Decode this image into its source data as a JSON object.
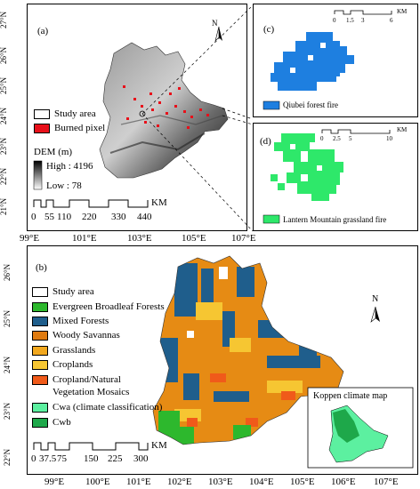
{
  "panel_a": {
    "label": "(a)",
    "north": "N",
    "lat_ticks": [
      "27°N",
      "26°N",
      "25°N",
      "24°N",
      "23°N",
      "22°N",
      "21°N"
    ],
    "lon_ticks": [
      "99°E",
      "101°E",
      "103°E",
      "105°E",
      "107°E"
    ],
    "legend": {
      "study_area": "Study area",
      "burned_pixel": "Burned pixel",
      "dem_title": "DEM (m)",
      "dem_high": "High : 4196",
      "dem_low": "Low : 78"
    },
    "scale_unit": "KM",
    "scale_labels": [
      "0",
      "55",
      "110",
      "220",
      "330",
      "440"
    ]
  },
  "panel_c": {
    "label": "(c)",
    "scale_labels": [
      "0",
      "1.5",
      "3",
      "6"
    ],
    "scale_unit": "KM",
    "legend": "Qiubei forest fire",
    "color": "#1e7fe0"
  },
  "panel_d": {
    "label": "(d)",
    "scale_labels": [
      "0",
      "2.5",
      "5",
      "10"
    ],
    "scale_unit": "KM",
    "legend": "Lantern Mountain grassland fire",
    "color": "#2ee86a"
  },
  "panel_b": {
    "label": "(b)",
    "north": "N",
    "lat_ticks": [
      "26°N",
      "25°N",
      "24°N",
      "23°N",
      "22°N"
    ],
    "lon_ticks": [
      "99°E",
      "100°E",
      "101°E",
      "102°E",
      "103°E",
      "104°E",
      "105°E",
      "106°E",
      "107°E"
    ],
    "legend": [
      {
        "label": "Study area",
        "color": "#ffffff"
      },
      {
        "label": "Evergreen Broadleaf Forests",
        "color": "#2db82d"
      },
      {
        "label": "Mixed Forests",
        "color": "#1f5e8c"
      },
      {
        "label": "Woody Savannas",
        "color": "#e07b10"
      },
      {
        "label": "Grasslands",
        "color": "#f2a81e"
      },
      {
        "label": "Croplands",
        "color": "#f6c632"
      },
      {
        "label": "Cropland/Natural",
        "color": "#f05a1a"
      },
      {
        "label": "Vegetation Mosaics",
        "color": null
      },
      {
        "label": "Cwa (climate classification)",
        "color": "#5cf0a0"
      },
      {
        "label": "Cwb",
        "color": "#1ea84a"
      }
    ],
    "inset_title": "Koppen climate map",
    "scale_unit": "KM",
    "scale_labels": [
      "0",
      "37.5",
      "75",
      "150",
      "225",
      "300"
    ]
  }
}
